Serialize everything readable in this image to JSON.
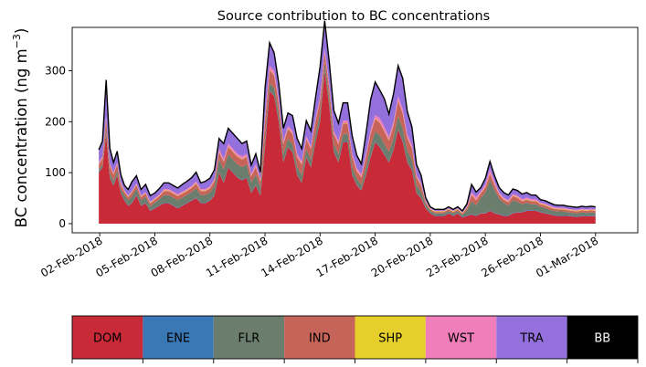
{
  "chart_data": {
    "type": "area",
    "title": "Source contribution to BC concentrations",
    "ylabel_main": "BC concentration (ng m",
    "ylabel_sup": "−3",
    "ylabel_tail": ")",
    "xlabel": "",
    "ylim": [
      -18,
      385
    ],
    "yticks": [
      0,
      100,
      200,
      300
    ],
    "xlim": [
      0,
      30.8
    ],
    "xticks": [
      {
        "x": 1.5,
        "label": "02-Feb-2018"
      },
      {
        "x": 4.5,
        "label": "05-Feb-2018"
      },
      {
        "x": 7.5,
        "label": "08-Feb-2018"
      },
      {
        "x": 10.5,
        "label": "11-Feb-2018"
      },
      {
        "x": 13.5,
        "label": "14-Feb-2018"
      },
      {
        "x": 16.5,
        "label": "17-Feb-2018"
      },
      {
        "x": 19.5,
        "label": "20-Feb-2018"
      },
      {
        "x": 22.5,
        "label": "23-Feb-2018"
      },
      {
        "x": 25.5,
        "label": "26-Feb-2018"
      },
      {
        "x": 28.5,
        "label": "01-Mar-2018"
      }
    ],
    "x": [
      1.45,
      1.65,
      1.85,
      2.05,
      2.25,
      2.45,
      2.65,
      2.85,
      3.05,
      3.25,
      3.5,
      3.75,
      4.0,
      4.25,
      4.5,
      4.75,
      5.0,
      5.25,
      5.5,
      5.75,
      6.0,
      6.25,
      6.5,
      6.75,
      7.0,
      7.25,
      7.5,
      7.75,
      8.0,
      8.25,
      8.5,
      8.75,
      9.0,
      9.25,
      9.5,
      9.75,
      10.0,
      10.25,
      10.5,
      10.75,
      11.0,
      11.25,
      11.5,
      11.75,
      12.0,
      12.25,
      12.5,
      12.75,
      13.0,
      13.25,
      13.5,
      13.75,
      14.0,
      14.25,
      14.5,
      14.75,
      15.0,
      15.25,
      15.5,
      15.75,
      16.0,
      16.25,
      16.5,
      16.75,
      17.0,
      17.25,
      17.5,
      17.75,
      18.0,
      18.25,
      18.5,
      18.75,
      19.0,
      19.25,
      19.5,
      19.75,
      20.0,
      20.25,
      20.5,
      20.75,
      21.0,
      21.25,
      21.5,
      21.75,
      22.0,
      22.25,
      22.5,
      22.75,
      23.0,
      23.25,
      23.5,
      23.75,
      24.0,
      24.25,
      24.5,
      24.75,
      25.0,
      25.25,
      25.5,
      25.75,
      26.0,
      26.25,
      26.5,
      26.75,
      27.0,
      27.25,
      27.5,
      27.75,
      28.0,
      28.25,
      28.5
    ],
    "series": [
      {
        "name": "DOM",
        "color": "#c92a37",
        "values": [
          100,
          110,
          175,
          90,
          75,
          95,
          60,
          45,
          35,
          40,
          55,
          35,
          40,
          25,
          30,
          35,
          40,
          40,
          35,
          30,
          35,
          40,
          45,
          50,
          40,
          40,
          45,
          55,
          100,
          80,
          110,
          100,
          90,
          85,
          90,
          60,
          75,
          55,
          150,
          260,
          250,
          200,
          120,
          150,
          140,
          95,
          80,
          130,
          110,
          160,
          200,
          300,
          230,
          140,
          120,
          160,
          160,
          95,
          75,
          65,
          95,
          130,
          160,
          150,
          135,
          120,
          145,
          185,
          160,
          120,
          105,
          60,
          50,
          30,
          20,
          15,
          15,
          15,
          20,
          15,
          20,
          12,
          15,
          18,
          15,
          20,
          20,
          25,
          20,
          18,
          15,
          15,
          20,
          22,
          22,
          25,
          25,
          25,
          22,
          20,
          18,
          16,
          15,
          15,
          15,
          14,
          13,
          15,
          14,
          15,
          14
        ]
      },
      {
        "name": "ENE",
        "color": "#3a78b5",
        "values": [
          1,
          1,
          1,
          1,
          1,
          1,
          1,
          1,
          1,
          1,
          1,
          1,
          1,
          1,
          1,
          1,
          1,
          1,
          1,
          1,
          1,
          1,
          1,
          1,
          1,
          1,
          1,
          1,
          1,
          1,
          1,
          1,
          1,
          1,
          1,
          1,
          1,
          1,
          1,
          1,
          1,
          1,
          1,
          1,
          1,
          1,
          1,
          1,
          1,
          1,
          1,
          1,
          1,
          1,
          1,
          1,
          1,
          1,
          1,
          1,
          1,
          1,
          1,
          1,
          1,
          1,
          1,
          1,
          1,
          1,
          1,
          1,
          1,
          1,
          1,
          1,
          1,
          1,
          1,
          1,
          1,
          1,
          1,
          1,
          1,
          1,
          1,
          1,
          1,
          1,
          1,
          1,
          1,
          1,
          1,
          1,
          1,
          1,
          1,
          1,
          1,
          1,
          1,
          1,
          1,
          1,
          1,
          1,
          1,
          1,
          1
        ]
      },
      {
        "name": "FLR",
        "color": "#6b7d6c",
        "values": [
          5,
          5,
          10,
          8,
          8,
          8,
          6,
          10,
          10,
          12,
          12,
          10,
          12,
          8,
          10,
          12,
          15,
          15,
          15,
          15,
          15,
          15,
          16,
          18,
          15,
          15,
          15,
          18,
          25,
          25,
          25,
          25,
          25,
          25,
          25,
          20,
          20,
          15,
          15,
          15,
          15,
          15,
          15,
          15,
          15,
          15,
          15,
          15,
          15,
          15,
          15,
          15,
          15,
          15,
          15,
          15,
          15,
          15,
          12,
          10,
          15,
          20,
          20,
          22,
          20,
          20,
          22,
          25,
          25,
          22,
          20,
          15,
          12,
          6,
          4,
          4,
          4,
          4,
          4,
          4,
          4,
          4,
          10,
          25,
          20,
          30,
          40,
          60,
          45,
          30,
          25,
          20,
          25,
          20,
          15,
          15,
          12,
          12,
          10,
          10,
          8,
          8,
          8,
          8,
          6,
          6,
          6,
          6,
          6,
          6,
          6
        ]
      },
      {
        "name": "IND",
        "color": "#c6645a",
        "values": [
          10,
          12,
          20,
          15,
          12,
          12,
          10,
          6,
          6,
          8,
          8,
          6,
          6,
          6,
          6,
          6,
          8,
          8,
          8,
          8,
          8,
          8,
          8,
          10,
          8,
          8,
          8,
          10,
          15,
          15,
          15,
          15,
          15,
          15,
          15,
          12,
          15,
          12,
          35,
          25,
          25,
          20,
          20,
          20,
          20,
          20,
          20,
          20,
          20,
          25,
          25,
          20,
          20,
          20,
          20,
          20,
          20,
          20,
          15,
          15,
          20,
          25,
          25,
          25,
          25,
          22,
          25,
          30,
          30,
          25,
          22,
          15,
          12,
          5,
          3,
          3,
          3,
          3,
          3,
          3,
          3,
          3,
          5,
          12,
          10,
          8,
          10,
          12,
          10,
          8,
          6,
          6,
          8,
          8,
          6,
          6,
          6,
          6,
          5,
          5,
          5,
          4,
          4,
          4,
          4,
          4,
          4,
          4,
          4,
          4,
          4
        ]
      },
      {
        "name": "SHP",
        "color": "#e6cf2a",
        "values": [
          1,
          1,
          1,
          1,
          1,
          1,
          1,
          1,
          1,
          1,
          1,
          1,
          1,
          1,
          1,
          1,
          1,
          1,
          1,
          1,
          1,
          1,
          1,
          1,
          1,
          1,
          1,
          1,
          1,
          1,
          1,
          1,
          1,
          1,
          1,
          1,
          1,
          1,
          1,
          1,
          1,
          1,
          1,
          1,
          1,
          1,
          1,
          1,
          1,
          1,
          1,
          1,
          1,
          1,
          1,
          1,
          1,
          1,
          1,
          1,
          1,
          1,
          1,
          1,
          1,
          1,
          1,
          1,
          1,
          1,
          1,
          1,
          1,
          1,
          1,
          1,
          1,
          1,
          1,
          1,
          1,
          1,
          1,
          1,
          1,
          1,
          1,
          1,
          1,
          1,
          1,
          1,
          1,
          1,
          1,
          1,
          1,
          1,
          1,
          1,
          1,
          1,
          1,
          1,
          1,
          1,
          1,
          1,
          1,
          1,
          1
        ]
      },
      {
        "name": "WST",
        "color": "#f07ebb",
        "values": [
          3,
          3,
          5,
          3,
          3,
          3,
          3,
          2,
          2,
          2,
          2,
          2,
          2,
          2,
          2,
          2,
          3,
          3,
          3,
          3,
          3,
          3,
          3,
          3,
          3,
          3,
          3,
          3,
          5,
          5,
          5,
          5,
          5,
          5,
          5,
          3,
          5,
          3,
          8,
          8,
          8,
          8,
          5,
          5,
          5,
          5,
          5,
          5,
          5,
          5,
          6,
          6,
          5,
          5,
          5,
          5,
          5,
          5,
          5,
          5,
          5,
          6,
          6,
          8,
          8,
          6,
          6,
          8,
          8,
          6,
          6,
          4,
          3,
          2,
          1,
          1,
          1,
          1,
          1,
          1,
          1,
          1,
          2,
          5,
          5,
          3,
          5,
          8,
          5,
          3,
          3,
          3,
          3,
          3,
          3,
          3,
          3,
          3,
          2,
          2,
          2,
          2,
          2,
          2,
          2,
          2,
          2,
          2,
          2,
          2,
          2
        ]
      },
      {
        "name": "TRA",
        "color": "#9370db",
        "values": [
          25,
          30,
          70,
          30,
          20,
          22,
          15,
          10,
          12,
          18,
          15,
          12,
          15,
          12,
          10,
          12,
          12,
          12,
          12,
          12,
          14,
          15,
          16,
          18,
          12,
          15,
          16,
          18,
          20,
          30,
          30,
          30,
          30,
          25,
          25,
          18,
          20,
          14,
          55,
          45,
          35,
          30,
          25,
          25,
          30,
          30,
          25,
          30,
          30,
          40,
          60,
          55,
          45,
          40,
          35,
          35,
          35,
          35,
          25,
          20,
          40,
          60,
          65,
          55,
          55,
          45,
          55,
          60,
          60,
          45,
          35,
          20,
          16,
          6,
          3,
          3,
          3,
          3,
          3,
          3,
          3,
          3,
          5,
          15,
          10,
          8,
          12,
          15,
          12,
          10,
          10,
          10,
          10,
          10,
          10,
          10,
          8,
          8,
          6,
          6,
          6,
          5,
          5,
          5,
          5,
          5,
          5,
          5,
          5,
          5,
          5
        ]
      }
    ],
    "legend": [
      "DOM",
      "ENE",
      "FLR",
      "IND",
      "SHP",
      "WST",
      "TRA",
      "BB"
    ],
    "legend_colors": [
      "#c92a37",
      "#3a78b5",
      "#6b7d6c",
      "#c6645a",
      "#e6cf2a",
      "#f07ebb",
      "#9370db",
      "#000000"
    ],
    "legend_text_colors": [
      "#000000",
      "#000000",
      "#000000",
      "#000000",
      "#000000",
      "#000000",
      "#000000",
      "#ffffff"
    ],
    "total_line_color": "#000000"
  }
}
